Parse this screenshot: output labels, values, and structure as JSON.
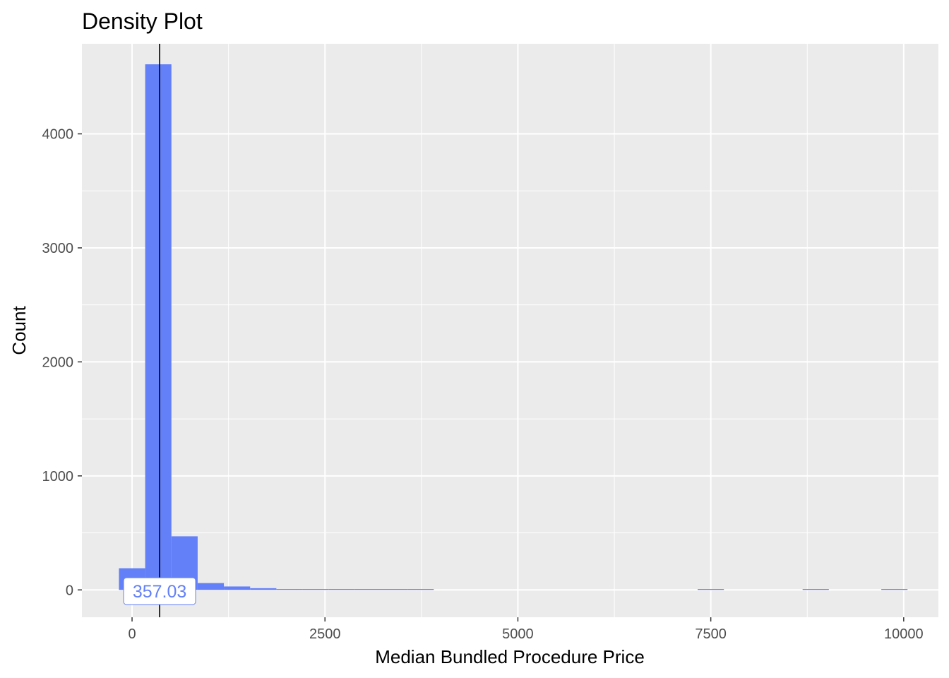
{
  "chart_data": {
    "type": "bar",
    "title": "Density Plot",
    "xlabel": "Median Bundled Procedure Price",
    "ylabel": "Count",
    "xlim": [
      -650,
      10450
    ],
    "ylim": [
      -240,
      4790
    ],
    "x_ticks": [
      0,
      2500,
      5000,
      7500,
      10000
    ],
    "x_tick_labels": [
      "0",
      "2500",
      "5000",
      "7500",
      "10000"
    ],
    "y_ticks": [
      0,
      1000,
      2000,
      3000,
      4000
    ],
    "y_tick_labels": [
      "0",
      "1000",
      "2000",
      "3000",
      "4000"
    ],
    "grid": true,
    "legend": "none",
    "bar_color": "#6380F8",
    "panel_background": "#EBEBEB",
    "bins": [
      {
        "x0": -170,
        "x1": 170,
        "count": 190
      },
      {
        "x0": 170,
        "x1": 510,
        "count": 4610
      },
      {
        "x0": 510,
        "x1": 850,
        "count": 470
      },
      {
        "x0": 850,
        "x1": 1190,
        "count": 60
      },
      {
        "x0": 1190,
        "x1": 1530,
        "count": 30
      },
      {
        "x0": 1530,
        "x1": 1870,
        "count": 15
      },
      {
        "x0": 1870,
        "x1": 2210,
        "count": 6
      },
      {
        "x0": 2210,
        "x1": 2550,
        "count": 4
      },
      {
        "x0": 2550,
        "x1": 2890,
        "count": 3
      },
      {
        "x0": 2890,
        "x1": 3230,
        "count": 2
      },
      {
        "x0": 3230,
        "x1": 3570,
        "count": 2
      },
      {
        "x0": 3570,
        "x1": 3910,
        "count": 1
      },
      {
        "x0": 7330,
        "x1": 7670,
        "count": 1
      },
      {
        "x0": 8690,
        "x1": 9030,
        "count": 1
      },
      {
        "x0": 9710,
        "x1": 10050,
        "count": 1
      }
    ],
    "mean_line": {
      "value": 357.03,
      "label": "357.03",
      "color": "#000000",
      "label_color": "#6380F8"
    }
  }
}
